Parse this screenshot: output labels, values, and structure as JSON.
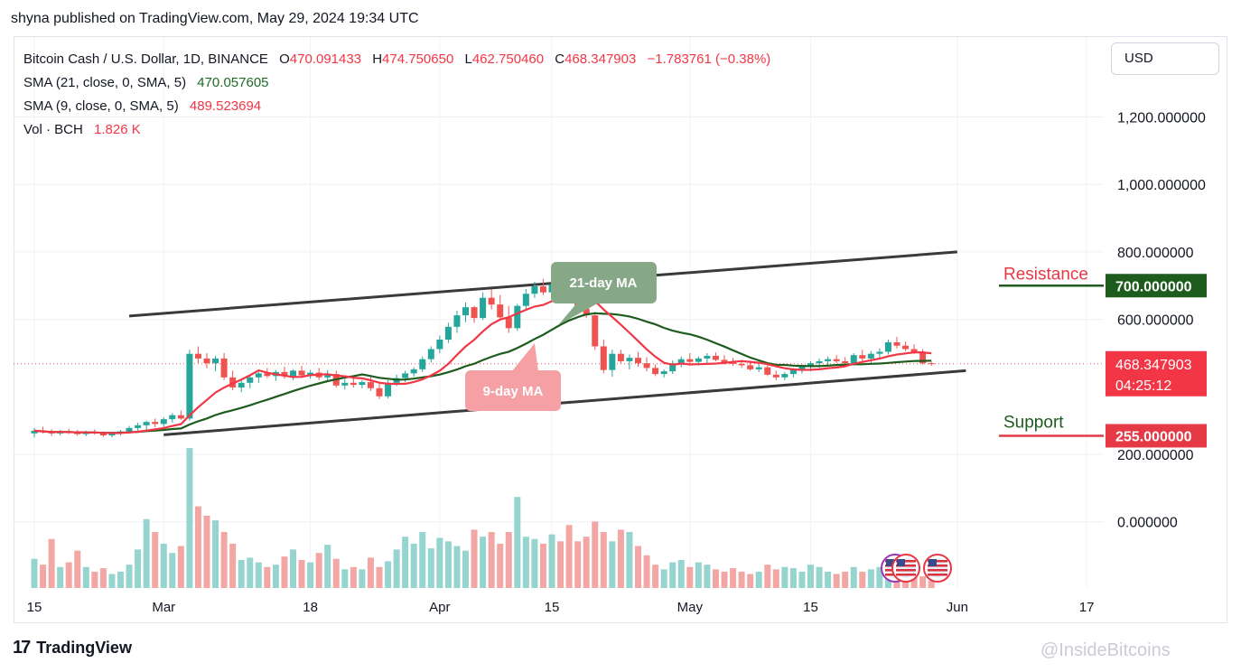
{
  "header": {
    "published_line": "shyna published on TradingView.com, May 29, 2024 19:34 UTC"
  },
  "legend": {
    "symbol": "Bitcoin Cash / U.S. Dollar, 1D, BINANCE",
    "o_label": "O",
    "o_value": "470.091433",
    "h_label": "H",
    "h_value": "474.750650",
    "l_label": "L",
    "l_value": "462.750460",
    "c_label": "C",
    "c_value": "468.347903",
    "change": "−1.783761 (−0.38%)",
    "sma21_label": "SMA (21, close, 0, SMA, 5)",
    "sma21_value": "470.057605",
    "sma9_label": "SMA (9, close, 0, SMA, 5)",
    "sma9_value": "489.523694",
    "vol_label": "Vol · BCH",
    "vol_value": "1.826 K"
  },
  "currency_button": "USD",
  "footer": {
    "brand": "TradingView",
    "brand_mark": "17",
    "watermark": "@InsideBitcoins"
  },
  "colors": {
    "up": "#26a69a",
    "down": "#ef5350",
    "sma9": "#f23645",
    "sma21": "#1e5c1e",
    "vol_up": "#96d4cf",
    "vol_down": "#f2a7a5",
    "resistance": "#1e5c1e",
    "support": "#e53946"
  },
  "chart_data": {
    "type": "candlestick",
    "y_axis_ticks": [
      "1,200.000000",
      "1,000.000000",
      "800.000000",
      "600.000000",
      "200.000000",
      "0.000000"
    ],
    "x_axis_ticks": [
      "15",
      "Mar",
      "18",
      "Apr",
      "15",
      "May",
      "15",
      "Jun",
      "17"
    ],
    "price_label": {
      "value": "468.347903",
      "countdown": "04:25:12"
    },
    "resistance": {
      "text": "Resistance",
      "value": "700.000000"
    },
    "support": {
      "text": "Support",
      "value": "255.000000"
    },
    "annotations": {
      "ma21": "21-day MA",
      "ma9": "9-day MA"
    },
    "trend_upper": [
      {
        "date": "2024-02-26",
        "value": 610
      },
      {
        "date": "2024-06-01",
        "value": 800
      }
    ],
    "trend_lower": [
      {
        "date": "2024-03-01",
        "value": 258
      },
      {
        "date": "2024-06-02",
        "value": 448
      }
    ],
    "candles": [
      {
        "date": "2024-02-15",
        "o": 262,
        "h": 278,
        "l": 250,
        "c": 270,
        "v": 25
      },
      {
        "date": "2024-02-16",
        "o": 270,
        "h": 282,
        "l": 262,
        "c": 266,
        "v": 20
      },
      {
        "date": "2024-02-17",
        "o": 266,
        "h": 274,
        "l": 255,
        "c": 262,
        "v": 42
      },
      {
        "date": "2024-02-18",
        "o": 262,
        "h": 272,
        "l": 256,
        "c": 268,
        "v": 18
      },
      {
        "date": "2024-02-19",
        "o": 268,
        "h": 276,
        "l": 260,
        "c": 264,
        "v": 22
      },
      {
        "date": "2024-02-20",
        "o": 264,
        "h": 272,
        "l": 255,
        "c": 260,
        "v": 32
      },
      {
        "date": "2024-02-21",
        "o": 260,
        "h": 270,
        "l": 254,
        "c": 266,
        "v": 18
      },
      {
        "date": "2024-02-22",
        "o": 266,
        "h": 274,
        "l": 258,
        "c": 262,
        "v": 14
      },
      {
        "date": "2024-02-23",
        "o": 262,
        "h": 268,
        "l": 252,
        "c": 256,
        "v": 17
      },
      {
        "date": "2024-02-24",
        "o": 256,
        "h": 266,
        "l": 250,
        "c": 262,
        "v": 12
      },
      {
        "date": "2024-02-25",
        "o": 262,
        "h": 272,
        "l": 256,
        "c": 268,
        "v": 14
      },
      {
        "date": "2024-02-26",
        "o": 268,
        "h": 284,
        "l": 262,
        "c": 278,
        "v": 20
      },
      {
        "date": "2024-02-27",
        "o": 278,
        "h": 294,
        "l": 270,
        "c": 286,
        "v": 33
      },
      {
        "date": "2024-02-28",
        "o": 286,
        "h": 300,
        "l": 272,
        "c": 296,
        "v": 59
      },
      {
        "date": "2024-02-29",
        "o": 296,
        "h": 306,
        "l": 280,
        "c": 290,
        "v": 48
      },
      {
        "date": "2024-03-01",
        "o": 290,
        "h": 310,
        "l": 280,
        "c": 304,
        "v": 38
      },
      {
        "date": "2024-03-02",
        "o": 304,
        "h": 322,
        "l": 294,
        "c": 316,
        "v": 30
      },
      {
        "date": "2024-03-03",
        "o": 316,
        "h": 330,
        "l": 302,
        "c": 306,
        "v": 36
      },
      {
        "date": "2024-03-04",
        "o": 306,
        "h": 510,
        "l": 300,
        "c": 498,
        "v": 120
      },
      {
        "date": "2024-03-05",
        "o": 498,
        "h": 520,
        "l": 470,
        "c": 484,
        "v": 70
      },
      {
        "date": "2024-03-06",
        "o": 484,
        "h": 500,
        "l": 455,
        "c": 470,
        "v": 62
      },
      {
        "date": "2024-03-07",
        "o": 470,
        "h": 492,
        "l": 446,
        "c": 484,
        "v": 58
      },
      {
        "date": "2024-03-08",
        "o": 484,
        "h": 500,
        "l": 420,
        "c": 428,
        "v": 48
      },
      {
        "date": "2024-03-09",
        "o": 428,
        "h": 448,
        "l": 390,
        "c": 398,
        "v": 38
      },
      {
        "date": "2024-03-10",
        "o": 398,
        "h": 420,
        "l": 384,
        "c": 412,
        "v": 24
      },
      {
        "date": "2024-03-11",
        "o": 412,
        "h": 434,
        "l": 396,
        "c": 428,
        "v": 26
      },
      {
        "date": "2024-03-12",
        "o": 428,
        "h": 446,
        "l": 412,
        "c": 440,
        "v": 22
      },
      {
        "date": "2024-03-13",
        "o": 440,
        "h": 456,
        "l": 426,
        "c": 432,
        "v": 18
      },
      {
        "date": "2024-03-14",
        "o": 432,
        "h": 450,
        "l": 418,
        "c": 444,
        "v": 20
      },
      {
        "date": "2024-03-15",
        "o": 444,
        "h": 460,
        "l": 424,
        "c": 432,
        "v": 27
      },
      {
        "date": "2024-03-16",
        "o": 432,
        "h": 452,
        "l": 420,
        "c": 448,
        "v": 33
      },
      {
        "date": "2024-03-17",
        "o": 448,
        "h": 462,
        "l": 426,
        "c": 434,
        "v": 24
      },
      {
        "date": "2024-03-18",
        "o": 434,
        "h": 450,
        "l": 424,
        "c": 442,
        "v": 22
      },
      {
        "date": "2024-03-19",
        "o": 442,
        "h": 456,
        "l": 420,
        "c": 428,
        "v": 30
      },
      {
        "date": "2024-03-20",
        "o": 428,
        "h": 450,
        "l": 418,
        "c": 438,
        "v": 37
      },
      {
        "date": "2024-03-21",
        "o": 438,
        "h": 448,
        "l": 398,
        "c": 404,
        "v": 25
      },
      {
        "date": "2024-03-22",
        "o": 404,
        "h": 424,
        "l": 392,
        "c": 412,
        "v": 16
      },
      {
        "date": "2024-03-23",
        "o": 412,
        "h": 426,
        "l": 398,
        "c": 406,
        "v": 18
      },
      {
        "date": "2024-03-24",
        "o": 406,
        "h": 420,
        "l": 396,
        "c": 414,
        "v": 16
      },
      {
        "date": "2024-03-25",
        "o": 414,
        "h": 430,
        "l": 388,
        "c": 396,
        "v": 26
      },
      {
        "date": "2024-03-26",
        "o": 396,
        "h": 412,
        "l": 364,
        "c": 372,
        "v": 18
      },
      {
        "date": "2024-03-27",
        "o": 372,
        "h": 420,
        "l": 366,
        "c": 412,
        "v": 23
      },
      {
        "date": "2024-03-28",
        "o": 412,
        "h": 436,
        "l": 402,
        "c": 426,
        "v": 33
      },
      {
        "date": "2024-03-29",
        "o": 426,
        "h": 448,
        "l": 414,
        "c": 440,
        "v": 44
      },
      {
        "date": "2024-03-30",
        "o": 440,
        "h": 458,
        "l": 430,
        "c": 452,
        "v": 38
      },
      {
        "date": "2024-03-31",
        "o": 452,
        "h": 490,
        "l": 444,
        "c": 482,
        "v": 48
      },
      {
        "date": "2024-04-01",
        "o": 482,
        "h": 520,
        "l": 472,
        "c": 512,
        "v": 34
      },
      {
        "date": "2024-04-02",
        "o": 512,
        "h": 552,
        "l": 500,
        "c": 540,
        "v": 43
      },
      {
        "date": "2024-04-03",
        "o": 540,
        "h": 590,
        "l": 530,
        "c": 578,
        "v": 40
      },
      {
        "date": "2024-04-04",
        "o": 578,
        "h": 626,
        "l": 560,
        "c": 612,
        "v": 36
      },
      {
        "date": "2024-04-05",
        "o": 612,
        "h": 650,
        "l": 592,
        "c": 636,
        "v": 32
      },
      {
        "date": "2024-04-06",
        "o": 636,
        "h": 640,
        "l": 590,
        "c": 604,
        "v": 50
      },
      {
        "date": "2024-04-07",
        "o": 604,
        "h": 680,
        "l": 598,
        "c": 664,
        "v": 44
      },
      {
        "date": "2024-04-08",
        "o": 664,
        "h": 690,
        "l": 630,
        "c": 644,
        "v": 48
      },
      {
        "date": "2024-04-09",
        "o": 644,
        "h": 672,
        "l": 596,
        "c": 606,
        "v": 38
      },
      {
        "date": "2024-04-10",
        "o": 606,
        "h": 640,
        "l": 560,
        "c": 574,
        "v": 48
      },
      {
        "date": "2024-04-11",
        "o": 574,
        "h": 646,
        "l": 566,
        "c": 640,
        "v": 78
      },
      {
        "date": "2024-04-12",
        "o": 640,
        "h": 690,
        "l": 630,
        "c": 676,
        "v": 44
      },
      {
        "date": "2024-04-13",
        "o": 676,
        "h": 712,
        "l": 664,
        "c": 698,
        "v": 42
      },
      {
        "date": "2024-04-14",
        "o": 698,
        "h": 720,
        "l": 672,
        "c": 680,
        "v": 38
      },
      {
        "date": "2024-04-15",
        "o": 680,
        "h": 716,
        "l": 664,
        "c": 704,
        "v": 46
      },
      {
        "date": "2024-04-16",
        "o": 704,
        "h": 714,
        "l": 680,
        "c": 688,
        "v": 40
      },
      {
        "date": "2024-04-17",
        "o": 688,
        "h": 704,
        "l": 670,
        "c": 678,
        "v": 54
      },
      {
        "date": "2024-04-18",
        "o": 678,
        "h": 690,
        "l": 620,
        "c": 632,
        "v": 40
      },
      {
        "date": "2024-04-19",
        "o": 632,
        "h": 650,
        "l": 604,
        "c": 612,
        "v": 44
      },
      {
        "date": "2024-04-20",
        "o": 612,
        "h": 622,
        "l": 510,
        "c": 520,
        "v": 57
      },
      {
        "date": "2024-04-21",
        "o": 520,
        "h": 540,
        "l": 440,
        "c": 450,
        "v": 48
      },
      {
        "date": "2024-04-22",
        "o": 450,
        "h": 510,
        "l": 430,
        "c": 498,
        "v": 40
      },
      {
        "date": "2024-04-23",
        "o": 498,
        "h": 510,
        "l": 470,
        "c": 476,
        "v": 50
      },
      {
        "date": "2024-04-24",
        "o": 476,
        "h": 496,
        "l": 452,
        "c": 486,
        "v": 48
      },
      {
        "date": "2024-04-25",
        "o": 486,
        "h": 504,
        "l": 460,
        "c": 470,
        "v": 36
      },
      {
        "date": "2024-04-26",
        "o": 470,
        "h": 488,
        "l": 446,
        "c": 456,
        "v": 28
      },
      {
        "date": "2024-04-27",
        "o": 456,
        "h": 466,
        "l": 432,
        "c": 438,
        "v": 20
      },
      {
        "date": "2024-04-28",
        "o": 438,
        "h": 452,
        "l": 428,
        "c": 446,
        "v": 16
      },
      {
        "date": "2024-04-29",
        "o": 446,
        "h": 478,
        "l": 438,
        "c": 470,
        "v": 22
      },
      {
        "date": "2024-04-30",
        "o": 470,
        "h": 490,
        "l": 458,
        "c": 482,
        "v": 24
      },
      {
        "date": "2024-05-01",
        "o": 482,
        "h": 500,
        "l": 466,
        "c": 474,
        "v": 18
      },
      {
        "date": "2024-05-02",
        "o": 474,
        "h": 490,
        "l": 464,
        "c": 484,
        "v": 22
      },
      {
        "date": "2024-05-03",
        "o": 484,
        "h": 500,
        "l": 470,
        "c": 492,
        "v": 20
      },
      {
        "date": "2024-05-04",
        "o": 492,
        "h": 502,
        "l": 476,
        "c": 480,
        "v": 16
      },
      {
        "date": "2024-05-05",
        "o": 480,
        "h": 494,
        "l": 466,
        "c": 472,
        "v": 14
      },
      {
        "date": "2024-05-06",
        "o": 472,
        "h": 486,
        "l": 462,
        "c": 468,
        "v": 17
      },
      {
        "date": "2024-05-07",
        "o": 468,
        "h": 480,
        "l": 456,
        "c": 464,
        "v": 14
      },
      {
        "date": "2024-05-08",
        "o": 464,
        "h": 474,
        "l": 448,
        "c": 452,
        "v": 12
      },
      {
        "date": "2024-05-09",
        "o": 452,
        "h": 468,
        "l": 444,
        "c": 458,
        "v": 14
      },
      {
        "date": "2024-05-10",
        "o": 458,
        "h": 466,
        "l": 432,
        "c": 436,
        "v": 20
      },
      {
        "date": "2024-05-11",
        "o": 436,
        "h": 448,
        "l": 420,
        "c": 428,
        "v": 16
      },
      {
        "date": "2024-05-12",
        "o": 428,
        "h": 444,
        "l": 420,
        "c": 438,
        "v": 18
      },
      {
        "date": "2024-05-13",
        "o": 438,
        "h": 456,
        "l": 428,
        "c": 450,
        "v": 17
      },
      {
        "date": "2024-05-14",
        "o": 450,
        "h": 466,
        "l": 440,
        "c": 460,
        "v": 14
      },
      {
        "date": "2024-05-15",
        "o": 460,
        "h": 476,
        "l": 446,
        "c": 470,
        "v": 20
      },
      {
        "date": "2024-05-16",
        "o": 470,
        "h": 484,
        "l": 456,
        "c": 476,
        "v": 18
      },
      {
        "date": "2024-05-17",
        "o": 476,
        "h": 490,
        "l": 462,
        "c": 482,
        "v": 14
      },
      {
        "date": "2024-05-18",
        "o": 482,
        "h": 494,
        "l": 470,
        "c": 476,
        "v": 12
      },
      {
        "date": "2024-05-19",
        "o": 476,
        "h": 488,
        "l": 462,
        "c": 470,
        "v": 14
      },
      {
        "date": "2024-05-20",
        "o": 470,
        "h": 500,
        "l": 464,
        "c": 494,
        "v": 18
      },
      {
        "date": "2024-05-21",
        "o": 494,
        "h": 510,
        "l": 476,
        "c": 484,
        "v": 14
      },
      {
        "date": "2024-05-22",
        "o": 484,
        "h": 506,
        "l": 470,
        "c": 498,
        "v": 16
      },
      {
        "date": "2024-05-23",
        "o": 498,
        "h": 514,
        "l": 484,
        "c": 504,
        "v": 18
      },
      {
        "date": "2024-05-24",
        "o": 504,
        "h": 540,
        "l": 496,
        "c": 532,
        "v": 22
      },
      {
        "date": "2024-05-25",
        "o": 532,
        "h": 548,
        "l": 514,
        "c": 522,
        "v": 22
      },
      {
        "date": "2024-05-26",
        "o": 522,
        "h": 534,
        "l": 506,
        "c": 512,
        "v": 16
      },
      {
        "date": "2024-05-27",
        "o": 512,
        "h": 526,
        "l": 498,
        "c": 504,
        "v": 14
      },
      {
        "date": "2024-05-28",
        "o": 504,
        "h": 512,
        "l": 466,
        "c": 470,
        "v": 10
      },
      {
        "date": "2024-05-29",
        "o": 470.091433,
        "h": 474.75065,
        "l": 462.75046,
        "c": 468.347903,
        "v": 6
      }
    ]
  }
}
